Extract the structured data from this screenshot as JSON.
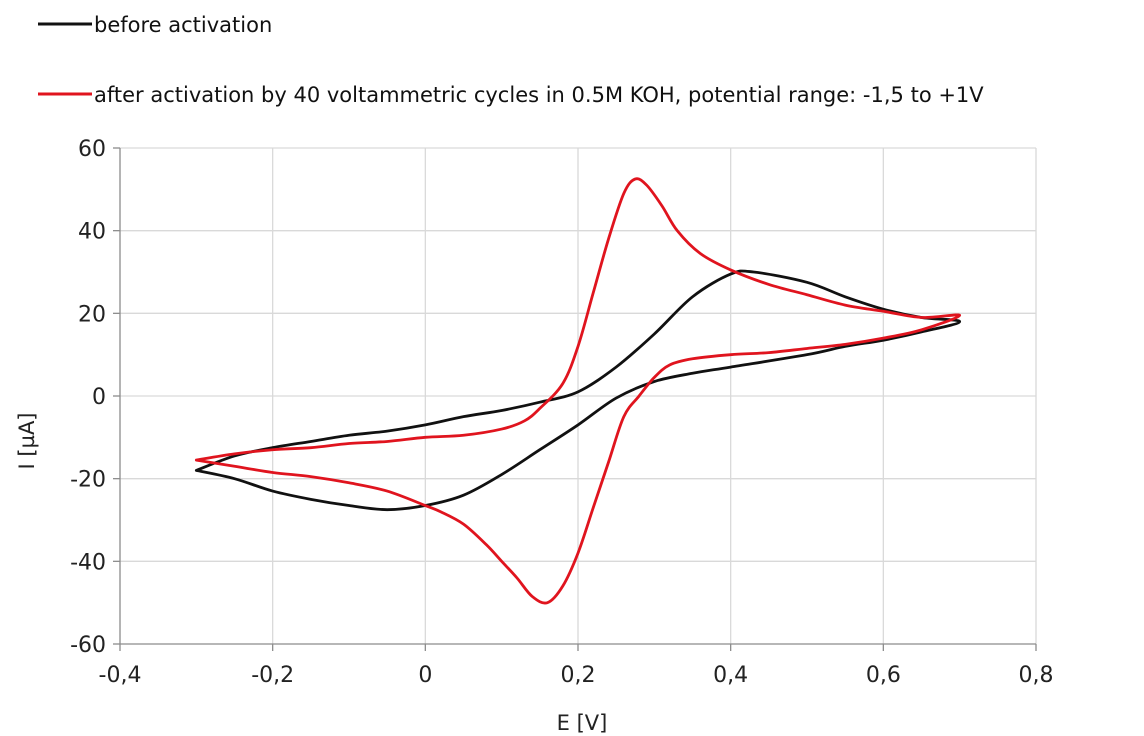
{
  "chart_data": {
    "type": "line",
    "title": "",
    "xlabel": "E [V]",
    "ylabel": "I [µA]",
    "xlim": [
      -0.4,
      0.8
    ],
    "ylim": [
      -60,
      60
    ],
    "x_ticks": [
      -0.4,
      -0.2,
      0,
      0.2,
      0.4,
      0.6,
      0.8
    ],
    "y_ticks": [
      -60,
      -40,
      -20,
      0,
      20,
      40,
      60
    ],
    "x_tick_labels": [
      "-0,4",
      "-0,2",
      "0",
      "0,2",
      "0,4",
      "0,6",
      "0,8"
    ],
    "y_tick_labels": [
      "-60",
      "-40",
      "-20",
      "0",
      "20",
      "40",
      "60"
    ],
    "grid": true,
    "legend_position": "top-left",
    "series": [
      {
        "name": "before activation",
        "color": "#111111",
        "points": [
          [
            -0.3,
            -18
          ],
          [
            -0.25,
            -14.5
          ],
          [
            -0.2,
            -12.5
          ],
          [
            -0.15,
            -11
          ],
          [
            -0.1,
            -9.5
          ],
          [
            -0.05,
            -8.5
          ],
          [
            0.0,
            -7
          ],
          [
            0.05,
            -5
          ],
          [
            0.1,
            -3.5
          ],
          [
            0.15,
            -1.5
          ],
          [
            0.2,
            1
          ],
          [
            0.25,
            7
          ],
          [
            0.3,
            15
          ],
          [
            0.35,
            24
          ],
          [
            0.4,
            29.5
          ],
          [
            0.43,
            30
          ],
          [
            0.5,
            27.5
          ],
          [
            0.55,
            24
          ],
          [
            0.6,
            21
          ],
          [
            0.65,
            19
          ],
          [
            0.7,
            18
          ],
          [
            0.65,
            15.5
          ],
          [
            0.6,
            13.5
          ],
          [
            0.55,
            12
          ],
          [
            0.5,
            10
          ],
          [
            0.4,
            7
          ],
          [
            0.35,
            5.5
          ],
          [
            0.3,
            3.5
          ],
          [
            0.25,
            -0.5
          ],
          [
            0.2,
            -7
          ],
          [
            0.15,
            -13
          ],
          [
            0.1,
            -19
          ],
          [
            0.05,
            -24
          ],
          [
            0.0,
            -26.5
          ],
          [
            -0.05,
            -27.5
          ],
          [
            -0.1,
            -26.5
          ],
          [
            -0.15,
            -25
          ],
          [
            -0.2,
            -23
          ],
          [
            -0.25,
            -20
          ],
          [
            -0.3,
            -18
          ]
        ]
      },
      {
        "name": "after activation by 40 voltammetric cycles in 0.5M KOH, potential range: -1,5 to +1V",
        "color": "#e0141e",
        "points": [
          [
            -0.3,
            -15.5
          ],
          [
            -0.25,
            -14
          ],
          [
            -0.2,
            -13
          ],
          [
            -0.15,
            -12.5
          ],
          [
            -0.1,
            -11.5
          ],
          [
            -0.05,
            -11
          ],
          [
            0.0,
            -10
          ],
          [
            0.05,
            -9.5
          ],
          [
            0.1,
            -8
          ],
          [
            0.13,
            -6
          ],
          [
            0.15,
            -3
          ],
          [
            0.18,
            3
          ],
          [
            0.2,
            12
          ],
          [
            0.22,
            25
          ],
          [
            0.24,
            38
          ],
          [
            0.26,
            49
          ],
          [
            0.275,
            52.5
          ],
          [
            0.29,
            51
          ],
          [
            0.31,
            46
          ],
          [
            0.33,
            40
          ],
          [
            0.36,
            34.5
          ],
          [
            0.4,
            30.5
          ],
          [
            0.45,
            27
          ],
          [
            0.5,
            24.5
          ],
          [
            0.55,
            22
          ],
          [
            0.6,
            20.5
          ],
          [
            0.65,
            19
          ],
          [
            0.7,
            19.5
          ],
          [
            0.65,
            16
          ],
          [
            0.6,
            14
          ],
          [
            0.55,
            12.5
          ],
          [
            0.5,
            11.5
          ],
          [
            0.45,
            10.5
          ],
          [
            0.4,
            10
          ],
          [
            0.35,
            9
          ],
          [
            0.32,
            7.5
          ],
          [
            0.3,
            4.5
          ],
          [
            0.28,
            0
          ],
          [
            0.26,
            -5
          ],
          [
            0.24,
            -16
          ],
          [
            0.22,
            -27
          ],
          [
            0.2,
            -38
          ],
          [
            0.18,
            -46
          ],
          [
            0.16,
            -50
          ],
          [
            0.14,
            -48.5
          ],
          [
            0.12,
            -44
          ],
          [
            0.1,
            -40
          ],
          [
            0.08,
            -36
          ],
          [
            0.05,
            -31
          ],
          [
            0.02,
            -28
          ],
          [
            0.0,
            -26.5
          ],
          [
            -0.05,
            -23
          ],
          [
            -0.1,
            -21
          ],
          [
            -0.15,
            -19.5
          ],
          [
            -0.2,
            -18.5
          ],
          [
            -0.25,
            -17
          ],
          [
            -0.3,
            -15.5
          ]
        ]
      }
    ]
  }
}
